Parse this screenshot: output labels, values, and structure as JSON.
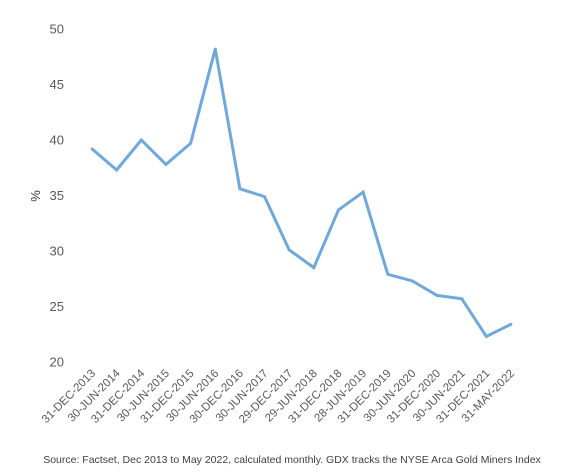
{
  "chart_data": {
    "type": "line",
    "ylabel": "%",
    "ylim": [
      20,
      50
    ],
    "yticks": [
      "20",
      "25",
      "30",
      "35",
      "40",
      "45",
      "50"
    ],
    "grid": false,
    "categories": [
      "31-DEC-2013",
      "30-JUN-2014",
      "31-DEC-2014",
      "30-JUN-2015",
      "31-DEC-2015",
      "30-JUN-2016",
      "30-DEC-2016",
      "30-JUN-2017",
      "29-DEC-2017",
      "29-JUN-2018",
      "31-DEC-2018",
      "28-JUN-2019",
      "31-DEC-2019",
      "30-JUN-2020",
      "31-DEC-2020",
      "30-JUN-2021",
      "31-DEC-2021",
      "31-MAY-2022"
    ],
    "series": [
      {
        "values": [
          39.2,
          37.3,
          40.0,
          37.8,
          39.7,
          48.2,
          35.6,
          34.9,
          30.1,
          28.5,
          33.7,
          35.3,
          27.9,
          27.3,
          26.0,
          25.7,
          22.3,
          23.4
        ],
        "color": "#6fa8dc"
      }
    ]
  },
  "footnote": "Source: Factset, Dec 2013 to May 2022, calculated monthly. GDX tracks the NYSE Arca Gold Miners Index"
}
